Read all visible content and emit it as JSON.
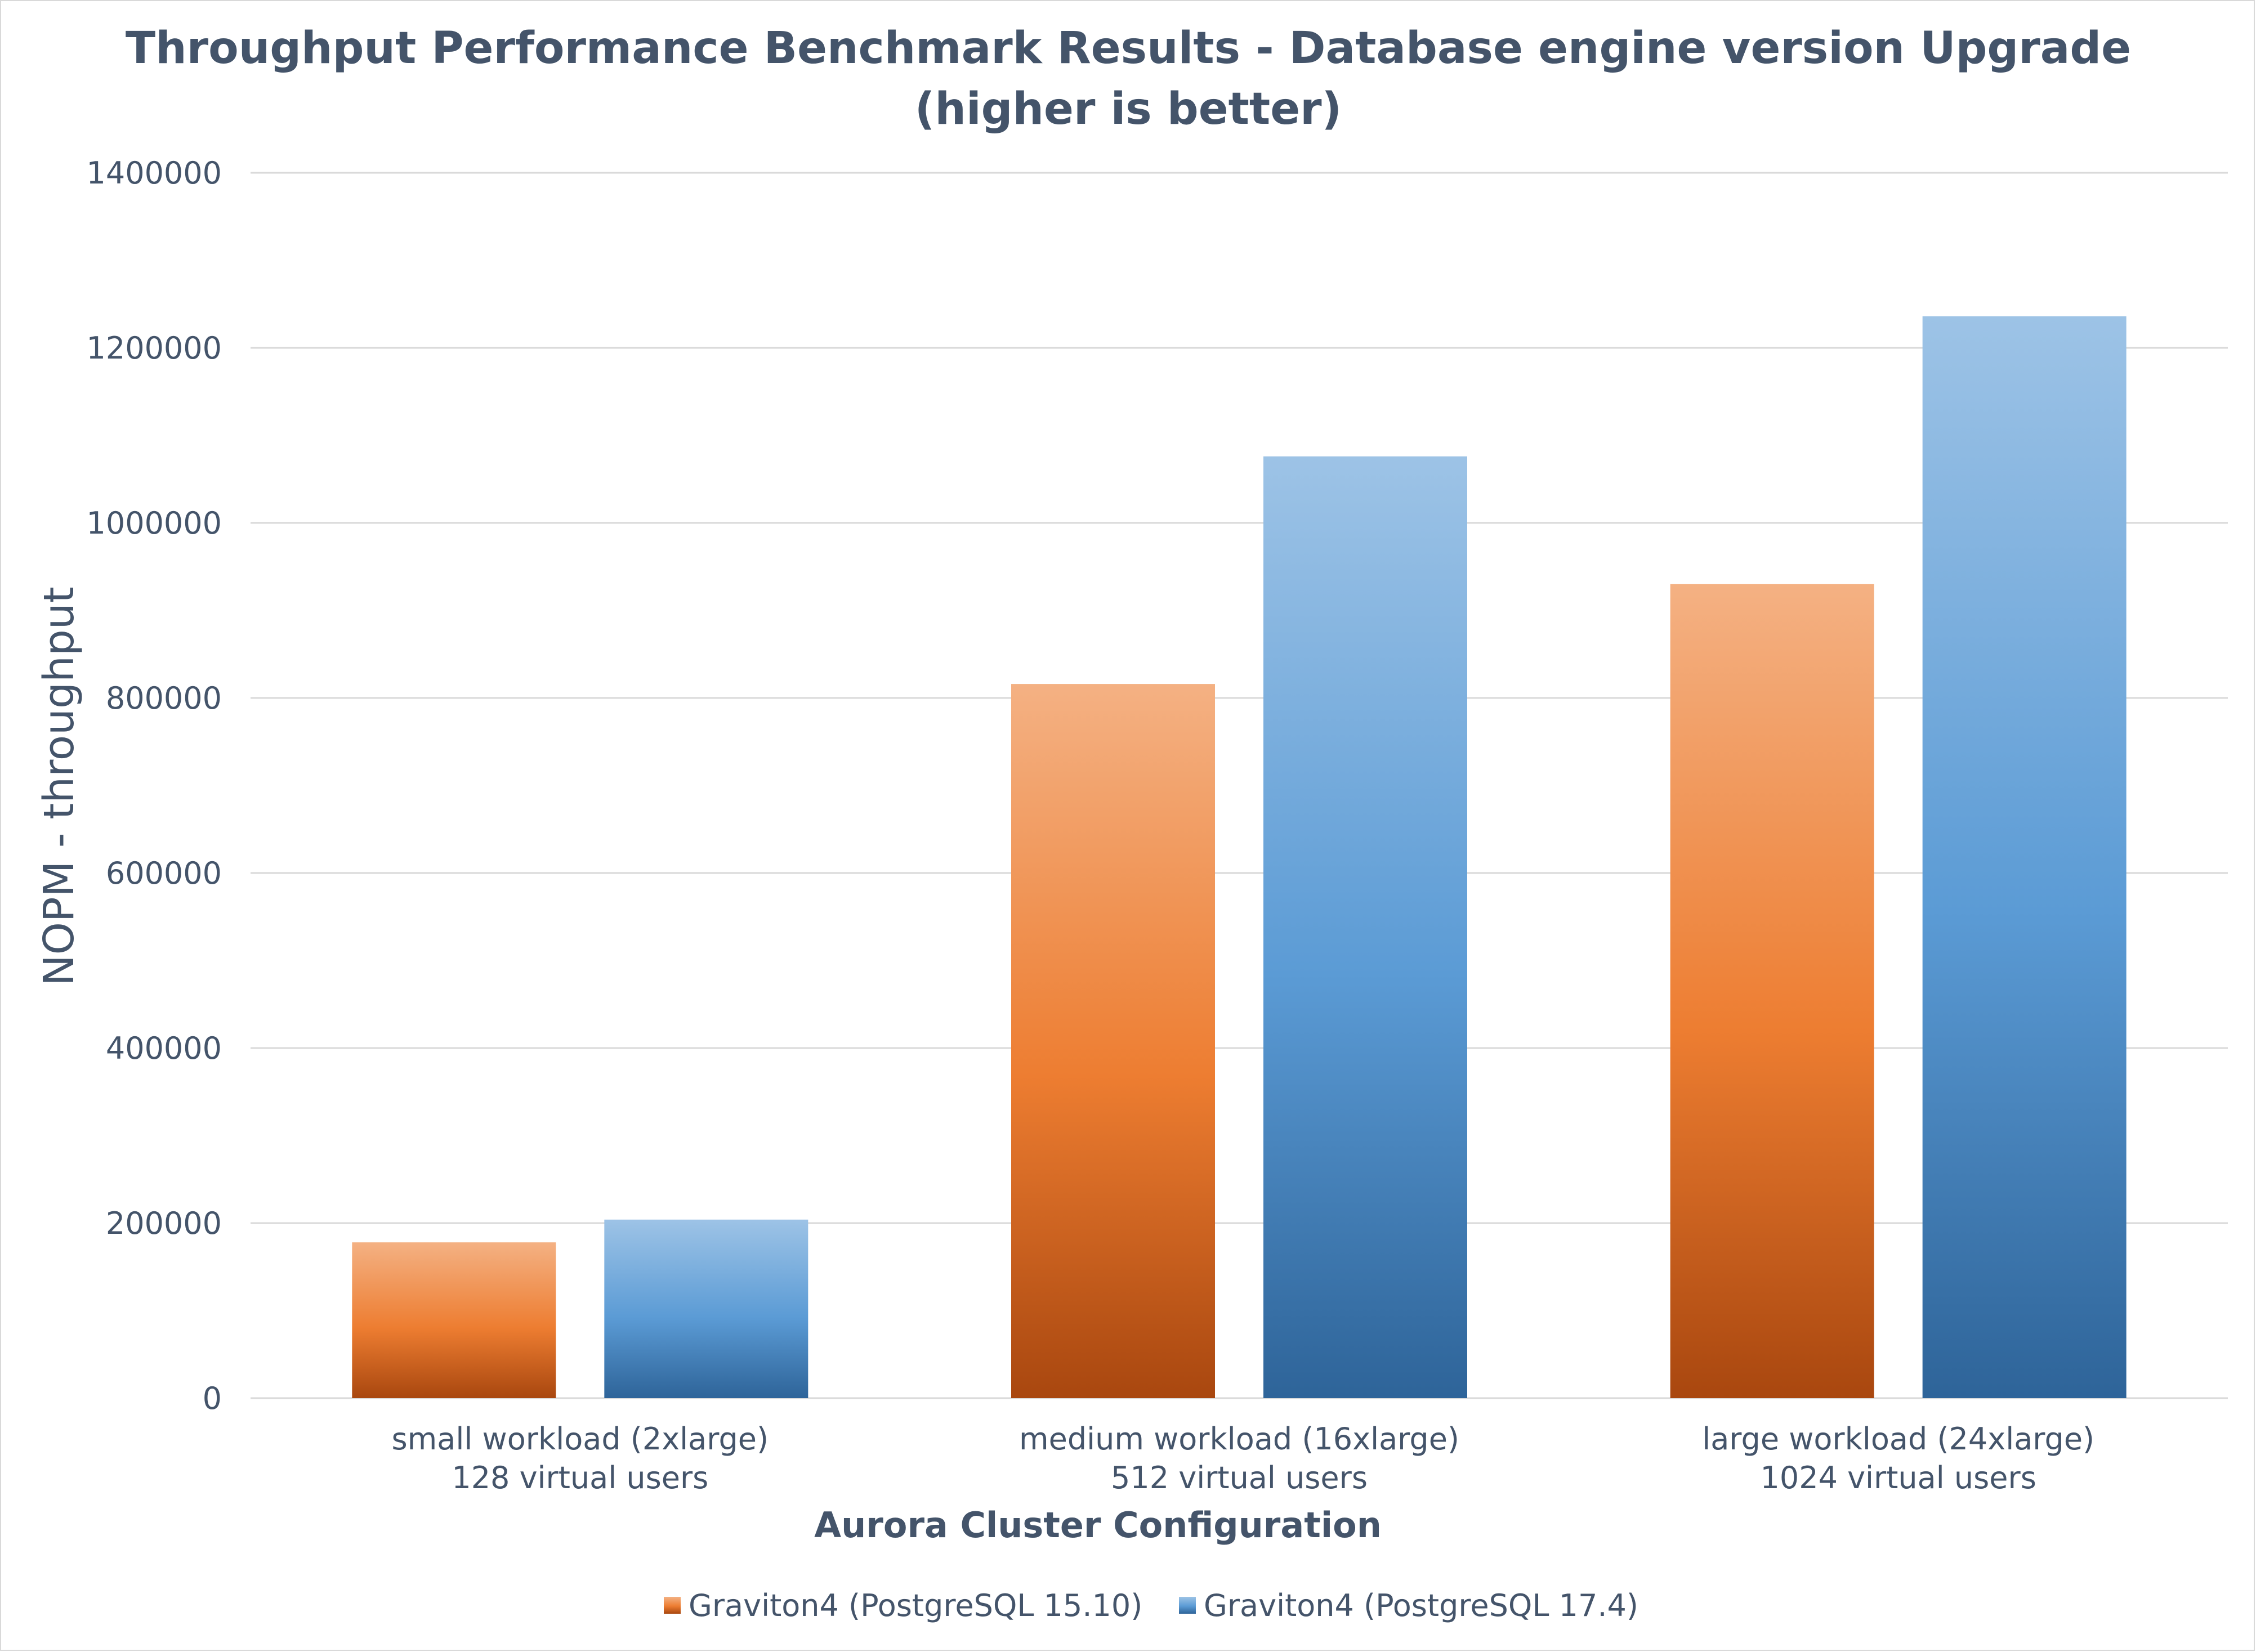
{
  "chart_data": {
    "type": "bar",
    "title_line1": "Throughput Performance Benchmark Results  - Database engine version Upgrade",
    "title_line2": "(higher is better)",
    "xlabel": "Aurora Cluster Configuration",
    "ylabel": "NOPM - throughput",
    "ylim": [
      0,
      1400000
    ],
    "yticks": [
      0,
      200000,
      400000,
      600000,
      800000,
      1000000,
      1200000,
      1400000
    ],
    "grid": true,
    "legend_position": "bottom",
    "categories": [
      {
        "line1": "small workload (2xlarge)",
        "line2": "128 virtual users"
      },
      {
        "line1": "medium workload (16xlarge)",
        "line2": "512 virtual users"
      },
      {
        "line1": "large workload (24xlarge)",
        "line2": "1024 virtual users"
      }
    ],
    "series": [
      {
        "name": "Graviton4 (PostgreSQL 15.10)",
        "values": [
          178000,
          816000,
          930000
        ],
        "colors": {
          "top": "#f4b183",
          "mid": "#ed7d31",
          "bottom": "#a9470f"
        }
      },
      {
        "name": "Graviton4 (PostgreSQL 17.4)",
        "values": [
          204000,
          1076000,
          1236000
        ],
        "colors": {
          "top": "#9dc3e6",
          "mid": "#5b9bd5",
          "bottom": "#2e6499"
        }
      }
    ]
  }
}
